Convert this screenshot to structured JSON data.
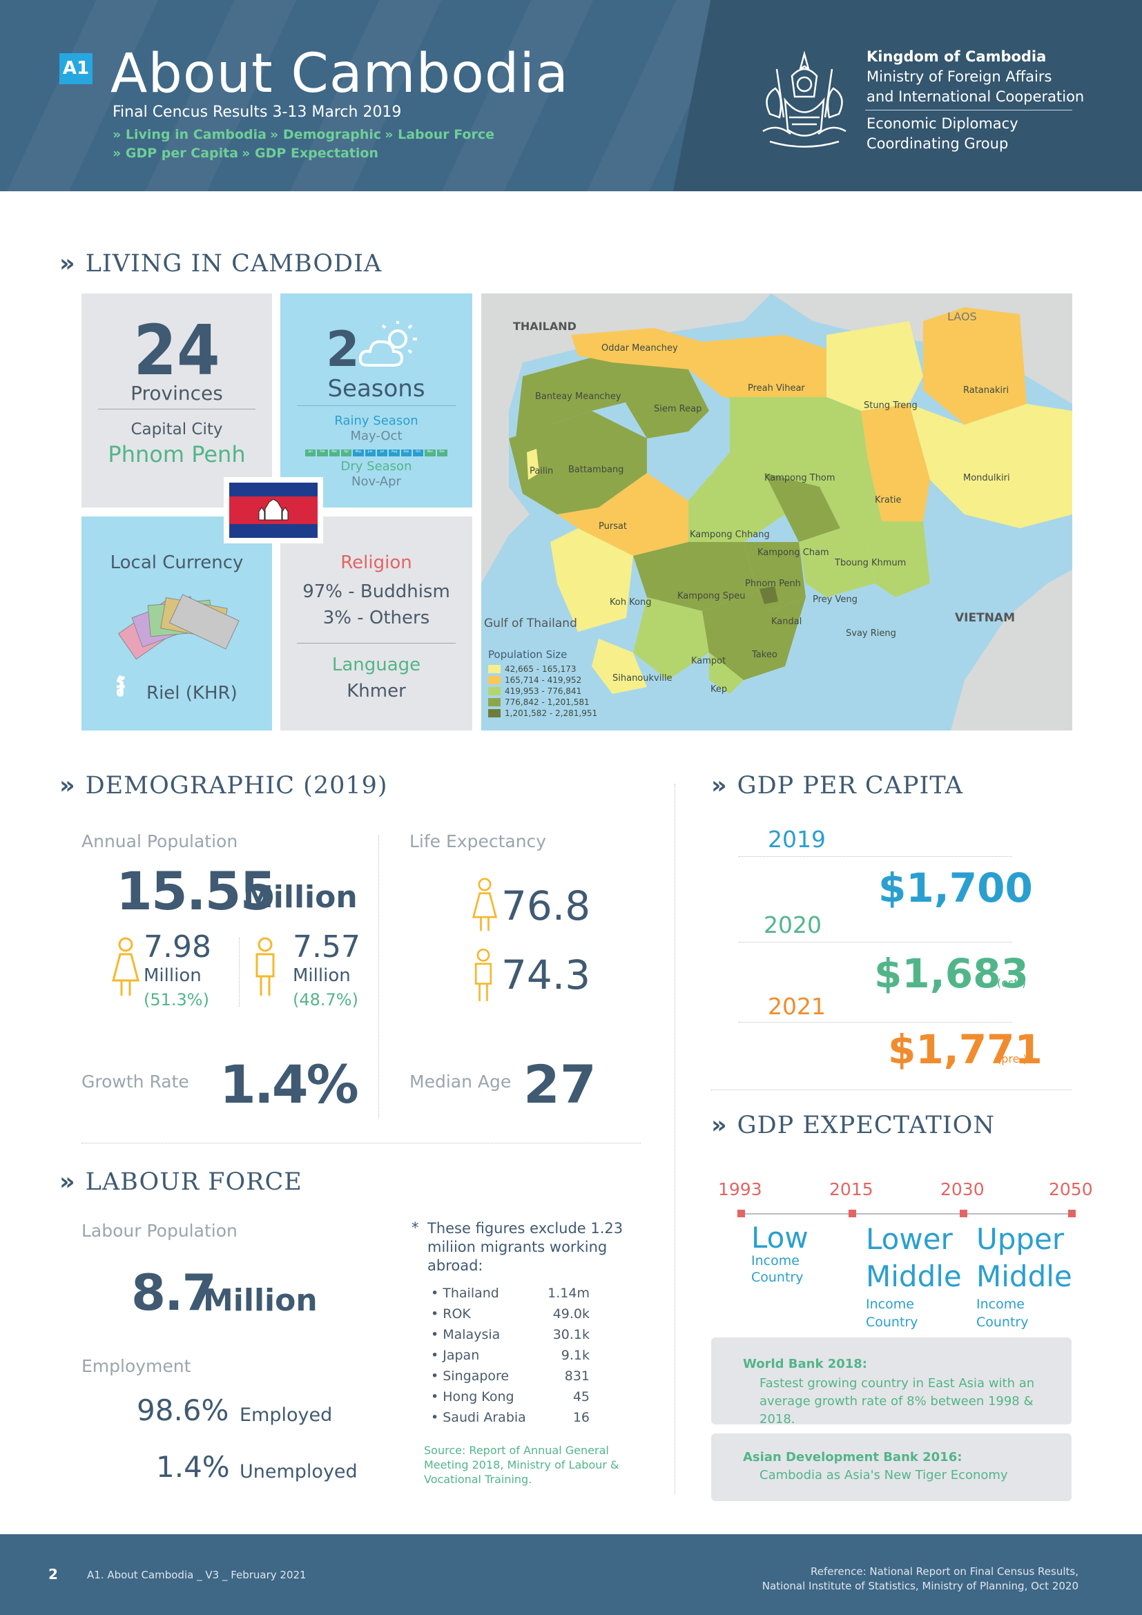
{
  "header": {
    "badge": "A1",
    "title": "About Cambodia",
    "subtitle": "Final Cencus Results 3-13 March 2019",
    "nav_line1": [
      "» Living in Cambodia",
      "» Demographic",
      "» Labour Force"
    ],
    "nav_line2": [
      "» GDP per Capita",
      "» GDP Expectation"
    ],
    "org_line1": "Kingdom of Cambodia",
    "org_line2": "Ministry of Foreign Affairs",
    "org_line3": "and International Cooperation",
    "org_line4": "Economic Diplomacy",
    "org_line5": "Coordinating Group"
  },
  "living": {
    "heading": "LIVING IN CAMBODIA",
    "provinces_count": "24",
    "provinces_label": "Provinces",
    "capital_label": "Capital City",
    "capital_value": "Phnom Penh",
    "seasons_count": "2",
    "seasons_label": "Seasons",
    "rainy_label": "Rainy Season",
    "rainy_months": "May-Oct",
    "dry_label": "Dry Season",
    "dry_months": "Nov-Apr",
    "month_strip": [
      "Jan",
      "Feb",
      "Mar",
      "Apr",
      "May",
      "Jun",
      "Jul",
      "Aug",
      "Sep",
      "Oct",
      "Nov",
      "Dec"
    ],
    "currency_label": "Local Currency",
    "currency_symbol": "៛",
    "currency_value": "Riel (KHR)",
    "religion_label": "Religion",
    "religion_1": "97% - Buddhism",
    "religion_2": "3% - Others",
    "language_label": "Language",
    "language_value": "Khmer"
  },
  "map": {
    "country_thailand": "THAILAND",
    "country_laos": "LAOS",
    "country_vietnam": "VIETNAM",
    "gulf": "Gulf of Thailand",
    "provinces": [
      "Oddar Meanchey",
      "Banteay Meanchey",
      "Siem Reap",
      "Preah Vihear",
      "Stung Treng",
      "Ratanakiri",
      "Pailin",
      "Battambang",
      "Kampong Thom",
      "Mondulkiri",
      "Kratie",
      "Pursat",
      "Kampong Chhang",
      "Kampong Cham",
      "Tboung Khmum",
      "Koh Kong",
      "Kampong Speu",
      "Phnom Penh",
      "Prey Veng",
      "Kandal",
      "Svay Rieng",
      "Kampot",
      "Takeo",
      "Sihanoukville",
      "Kep"
    ],
    "legend_title": "Population Size",
    "legend": [
      {
        "label": "42,665 - 165,173",
        "color": "#f6ef8a"
      },
      {
        "label": "165,714 - 419,952",
        "color": "#f9c859"
      },
      {
        "label": "419,953 - 776,841",
        "color": "#b4d56e"
      },
      {
        "label": "776,842 - 1,201,581",
        "color": "#8ea64a"
      },
      {
        "label": "1,201,582 - 2,281,951",
        "color": "#6d7c3a"
      }
    ]
  },
  "demographic": {
    "heading": "DEMOGRAPHIC (2019)",
    "annual_label": "Annual Population",
    "annual_value": "15.55",
    "annual_unit": "Million",
    "female_value": "7.98",
    "female_unit": "Million",
    "female_pct": "(51.3%)",
    "male_value": "7.57",
    "male_unit": "Million",
    "male_pct": "(48.7%)",
    "life_label": "Life Expectancy",
    "life_female": "76.8",
    "life_male": "74.3",
    "growth_label": "Growth Rate",
    "growth_value": "1.4%",
    "median_label": "Median Age",
    "median_value": "27"
  },
  "labour": {
    "heading": "LABOUR FORCE",
    "pop_label": "Labour Population",
    "pop_value": "8.7",
    "pop_unit": "Million",
    "employment_label": "Employment",
    "employed_value": "98.6%",
    "employed_label": "Employed",
    "unemployed_value": "1.4%",
    "unemployed_label": "Unemployed",
    "note_star": "*",
    "note_text": [
      "These figures exclude 1.23",
      "miliion migrants working",
      "abroad:"
    ],
    "migrants": [
      {
        "country": "• Thailand",
        "value": "1.14m"
      },
      {
        "country": "• ROK",
        "value": "49.0k"
      },
      {
        "country": "• Malaysia",
        "value": "30.1k"
      },
      {
        "country": "• Japan",
        "value": "9.1k"
      },
      {
        "country": "• Singapore",
        "value": "831"
      },
      {
        "country": "• Hong Kong",
        "value": "45"
      },
      {
        "country": "• Saudi Arabia",
        "value": "16"
      }
    ],
    "source": [
      "Source: Report of Annual General",
      "Meeting 2018, Ministry of Labour &",
      "Vocational Training."
    ]
  },
  "gdp": {
    "heading": "GDP PER CAPITA",
    "years": [
      {
        "year": "2019",
        "value": "$1,700",
        "suffix": ""
      },
      {
        "year": "2020",
        "value": "$1,683",
        "suffix": "(est.)"
      },
      {
        "year": "2021",
        "value": "$1,771",
        "suffix": "(pre.)"
      }
    ]
  },
  "expectation": {
    "heading": "GDP EXPECTATION",
    "timeline": [
      "1993",
      "2015",
      "2030",
      "2050"
    ],
    "stage1_title": "Low",
    "stage1_sub": [
      "Income",
      "Country"
    ],
    "stage2_title": [
      "Lower",
      "Middle"
    ],
    "stage2_sub": [
      "Income",
      "Country"
    ],
    "stage3_title": [
      "Upper",
      "Middle"
    ],
    "stage3_sub": [
      "Income",
      "Country"
    ],
    "wb_title": "World Bank 2018:",
    "wb_text": [
      "Fastest growing country in East Asia with an",
      "average growth rate of 8% between 1998 & 2018."
    ],
    "adb_title": "Asian Development Bank 2016:",
    "adb_text": "Cambodia as Asia's New Tiger Economy"
  },
  "footer": {
    "page": "2",
    "doc": "A1. About Cambodia _ V3 _ February 2021",
    "ref1": "Reference: National Report on Final Census Results,",
    "ref2": "National Institute of Statistics, Ministry of Planning, Oct 2020"
  }
}
